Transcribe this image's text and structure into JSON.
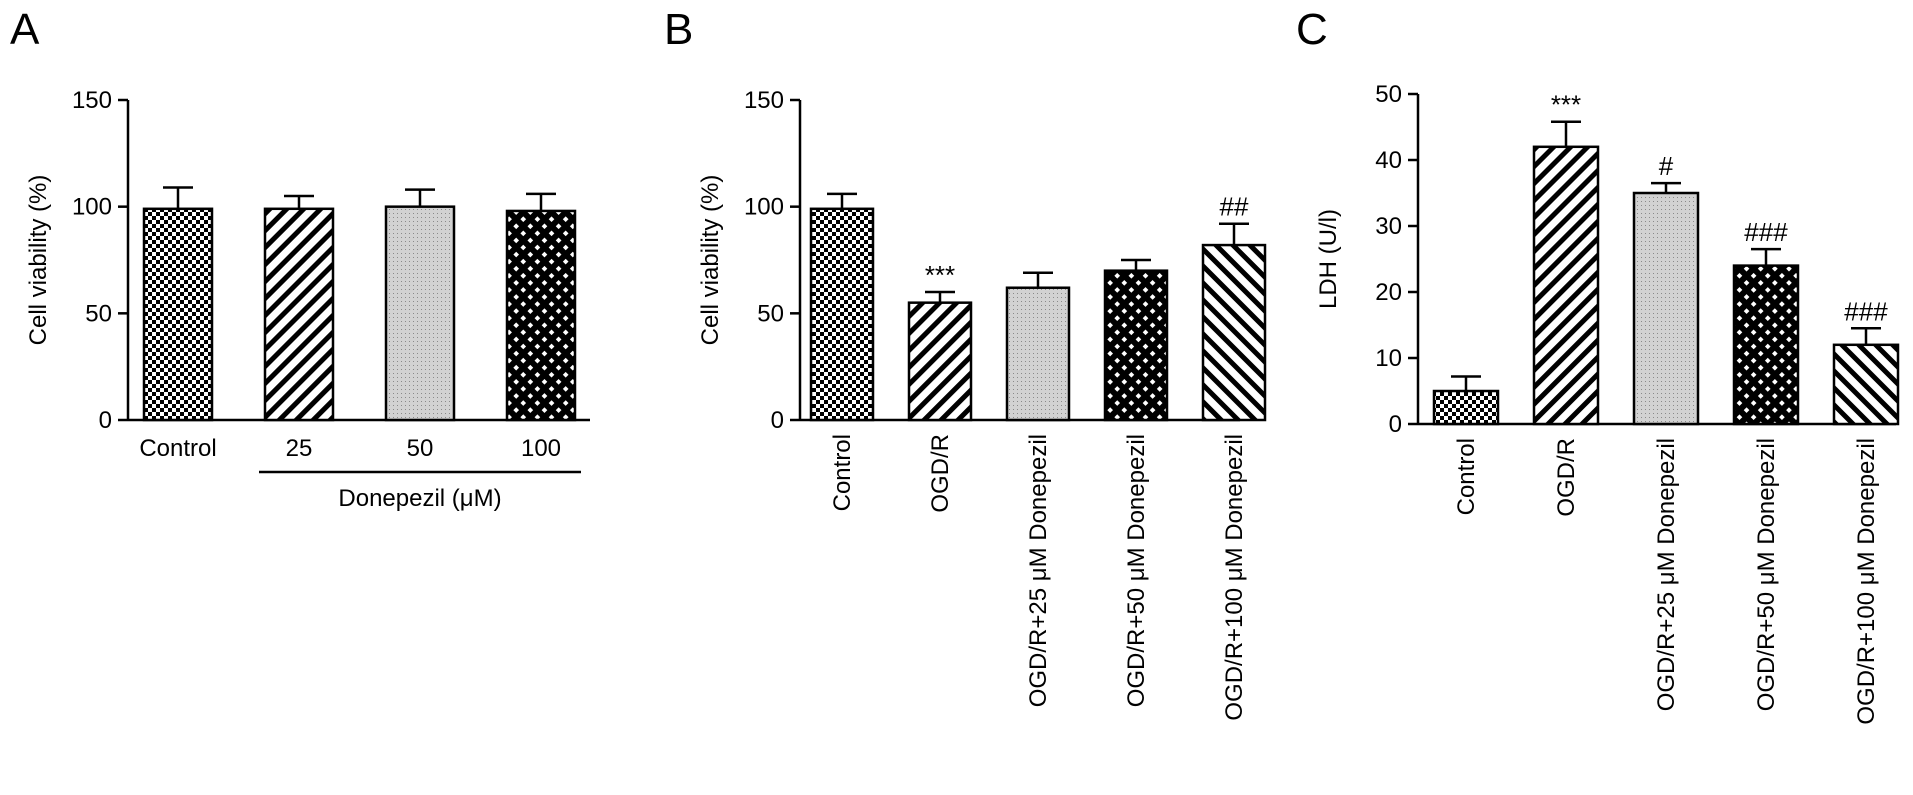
{
  "colors": {
    "ink": "#000000",
    "background": "#ffffff",
    "dot_fill": "#c8c8c8"
  },
  "chart_data": [
    {
      "panel": "A",
      "type": "bar",
      "categories": [
        "Control",
        "25",
        "50",
        "100"
      ],
      "values": [
        99,
        99,
        100,
        98
      ],
      "errors": [
        10,
        6,
        8,
        8
      ],
      "patterns": [
        "checker",
        "diag-left",
        "dots",
        "crosshatch"
      ],
      "annotations": [
        "",
        "",
        "",
        ""
      ],
      "ylabel": "Cell viability (%)",
      "ylim": [
        0,
        150
      ],
      "yticks": [
        0,
        50,
        100,
        150
      ],
      "group_label": "Donepezil (μM)",
      "group_span": [
        1,
        3
      ],
      "rotated_labels": false,
      "grid": false
    },
    {
      "panel": "B",
      "type": "bar",
      "categories": [
        "Control",
        "OGD/R",
        "OGD/R+25 μM Donepezil",
        "OGD/R+50 μM Donepezil",
        "OGD/R+100 μM Donepezil"
      ],
      "values": [
        99,
        55,
        62,
        70,
        82
      ],
      "errors": [
        7,
        5,
        7,
        5,
        10
      ],
      "patterns": [
        "checker",
        "diag-left",
        "dots",
        "crosshatch",
        "diag-right"
      ],
      "annotations": [
        "",
        "***",
        "",
        "",
        "##"
      ],
      "ylabel": "Cell viability (%)",
      "ylim": [
        0,
        150
      ],
      "yticks": [
        0,
        50,
        100,
        150
      ],
      "rotated_labels": true,
      "grid": false
    },
    {
      "panel": "C",
      "type": "bar",
      "categories": [
        "Control",
        "OGD/R",
        "OGD/R+25 μM Donepezil",
        "OGD/R+50 μM Donepezil",
        "OGD/R+100 μM Donepezil"
      ],
      "values": [
        5,
        42,
        35,
        24,
        12
      ],
      "errors": [
        2.2,
        3.8,
        1.5,
        2.5,
        2.5
      ],
      "patterns": [
        "checker",
        "diag-left",
        "dots",
        "crosshatch",
        "diag-right"
      ],
      "annotations": [
        "",
        "***",
        "#",
        "###",
        "###"
      ],
      "ylabel": "LDH (U/l)",
      "ylim": [
        0,
        50
      ],
      "yticks": [
        0,
        10,
        20,
        30,
        40,
        50
      ],
      "rotated_labels": true,
      "grid": false
    }
  ]
}
